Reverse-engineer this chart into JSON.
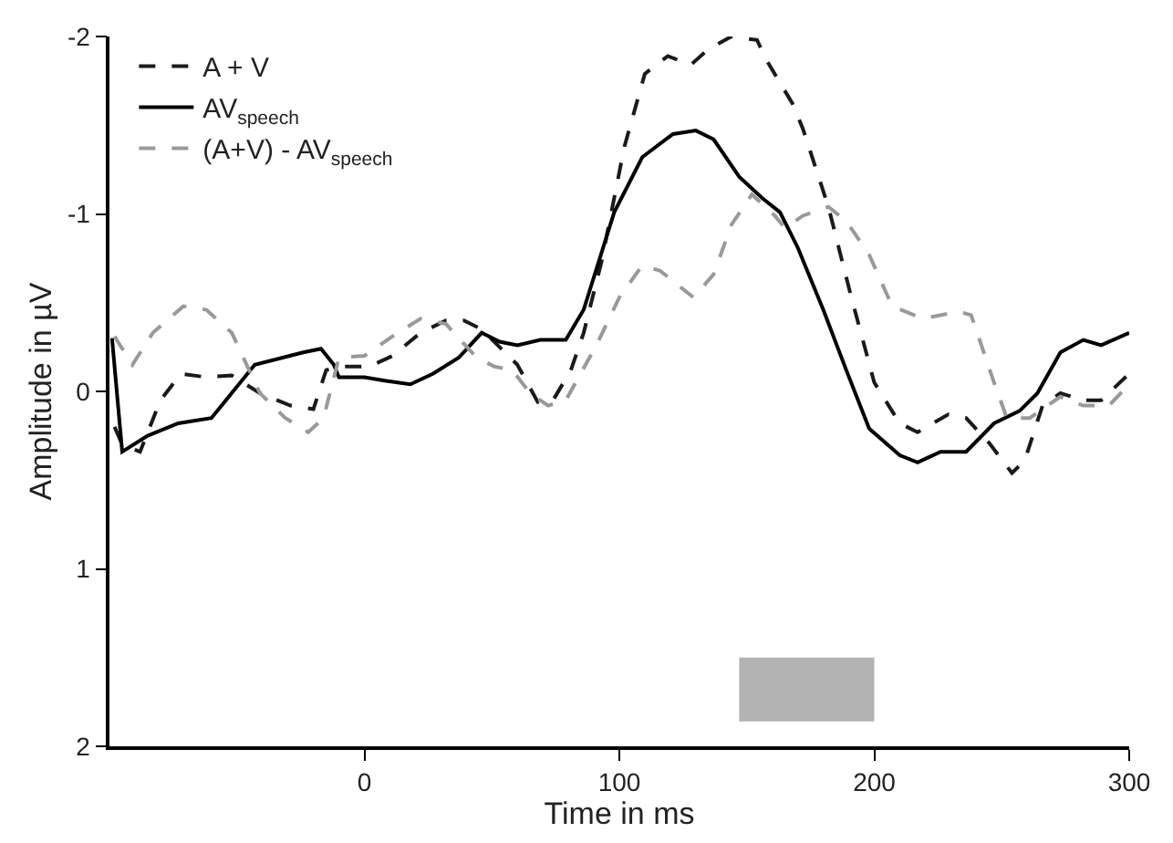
{
  "chart_data": {
    "type": "line",
    "xlabel": "Time in ms",
    "ylabel": "Amplitude in µV",
    "xlim": [
      -100,
      300
    ],
    "ylim": [
      2,
      -2
    ],
    "xticks": [
      0,
      100,
      200,
      300
    ],
    "yticks": [
      -2,
      -1,
      0,
      1,
      2
    ],
    "grid": false,
    "legend": "top left",
    "marker": "none",
    "series": [
      {
        "name": "A + V",
        "color": "#1a1a1a",
        "line_style": "dashed",
        "x": [
          -98,
          -95,
          -88,
          -80,
          -72,
          -62,
          -52,
          -41,
          -29,
          -20,
          -15,
          -8,
          2,
          11,
          22,
          32,
          39,
          46,
          60,
          68,
          74,
          81,
          86,
          93,
          102,
          110,
          119,
          128,
          135,
          144,
          154,
          158,
          168,
          172,
          182,
          191,
          200,
          210,
          217,
          229,
          236,
          245,
          254,
          259,
          266,
          273,
          282,
          289,
          300
        ],
        "values": [
          0.2,
          0.3,
          0.34,
          0.05,
          -0.1,
          -0.08,
          -0.09,
          0.01,
          0.08,
          0.1,
          -0.12,
          -0.14,
          -0.14,
          -0.2,
          -0.33,
          -0.4,
          -0.4,
          -0.35,
          -0.15,
          0.06,
          0.05,
          -0.12,
          -0.33,
          -0.73,
          -1.38,
          -1.79,
          -1.89,
          -1.84,
          -1.93,
          -2.0,
          -1.98,
          -1.86,
          -1.62,
          -1.48,
          -1.04,
          -0.53,
          -0.05,
          0.18,
          0.23,
          0.13,
          0.15,
          0.29,
          0.46,
          0.39,
          0.08,
          0.01,
          0.05,
          0.05,
          -0.1
        ]
      },
      {
        "name": "AV$_{speech}$",
        "color": "#000000",
        "line_style": "solid",
        "x": [
          -99,
          -95,
          -85,
          -73,
          -60,
          -43,
          -24,
          -17,
          -12,
          -10,
          0,
          8,
          18,
          27,
          37,
          46,
          53,
          60,
          69,
          79,
          86,
          98,
          109,
          121,
          130,
          137,
          147,
          156,
          163,
          170,
          180,
          189,
          198,
          210,
          217,
          226,
          236,
          247,
          257,
          264,
          273,
          282,
          289,
          300
        ],
        "values": [
          -0.3,
          0.34,
          0.25,
          0.18,
          0.15,
          -0.15,
          -0.22,
          -0.24,
          -0.15,
          -0.08,
          -0.08,
          -0.06,
          -0.04,
          -0.1,
          -0.19,
          -0.33,
          -0.28,
          -0.26,
          -0.29,
          -0.29,
          -0.46,
          -1.01,
          -1.32,
          -1.45,
          -1.47,
          -1.42,
          -1.21,
          -1.09,
          -1.01,
          -0.81,
          -0.46,
          -0.12,
          0.21,
          0.36,
          0.4,
          0.34,
          0.34,
          0.18,
          0.11,
          0.01,
          -0.22,
          -0.29,
          -0.26,
          -0.33
        ]
      },
      {
        "name": "(A+V) - AV$_{speech}$",
        "color": "#999999",
        "line_style": "dashed",
        "x": [
          -98,
          -91,
          -83,
          -71,
          -62,
          -52,
          -41,
          -31,
          -22,
          -16,
          -10,
          0,
          11,
          22,
          32,
          44,
          51,
          58,
          65,
          72,
          79,
          91,
          100,
          109,
          116,
          129,
          137,
          144,
          152,
          161,
          165,
          172,
          182,
          189,
          198,
          207,
          219,
          233,
          238,
          247,
          252,
          261,
          273,
          282,
          292,
          300
        ],
        "values": [
          -0.31,
          -0.15,
          -0.33,
          -0.48,
          -0.46,
          -0.33,
          0.01,
          0.15,
          0.23,
          0.15,
          -0.19,
          -0.2,
          -0.31,
          -0.41,
          -0.38,
          -0.19,
          -0.14,
          -0.12,
          0.01,
          0.08,
          0.05,
          -0.26,
          -0.53,
          -0.71,
          -0.68,
          -0.53,
          -0.66,
          -0.94,
          -1.11,
          -0.99,
          -0.92,
          -0.99,
          -1.04,
          -0.96,
          -0.77,
          -0.48,
          -0.41,
          -0.45,
          -0.43,
          -0.05,
          0.15,
          0.15,
          0.03,
          0.08,
          0.08,
          -0.04
        ]
      }
    ],
    "bands": [
      {
        "axis": "x",
        "from": 147,
        "to": 200,
        "color": "#b3b3b3"
      }
    ]
  }
}
